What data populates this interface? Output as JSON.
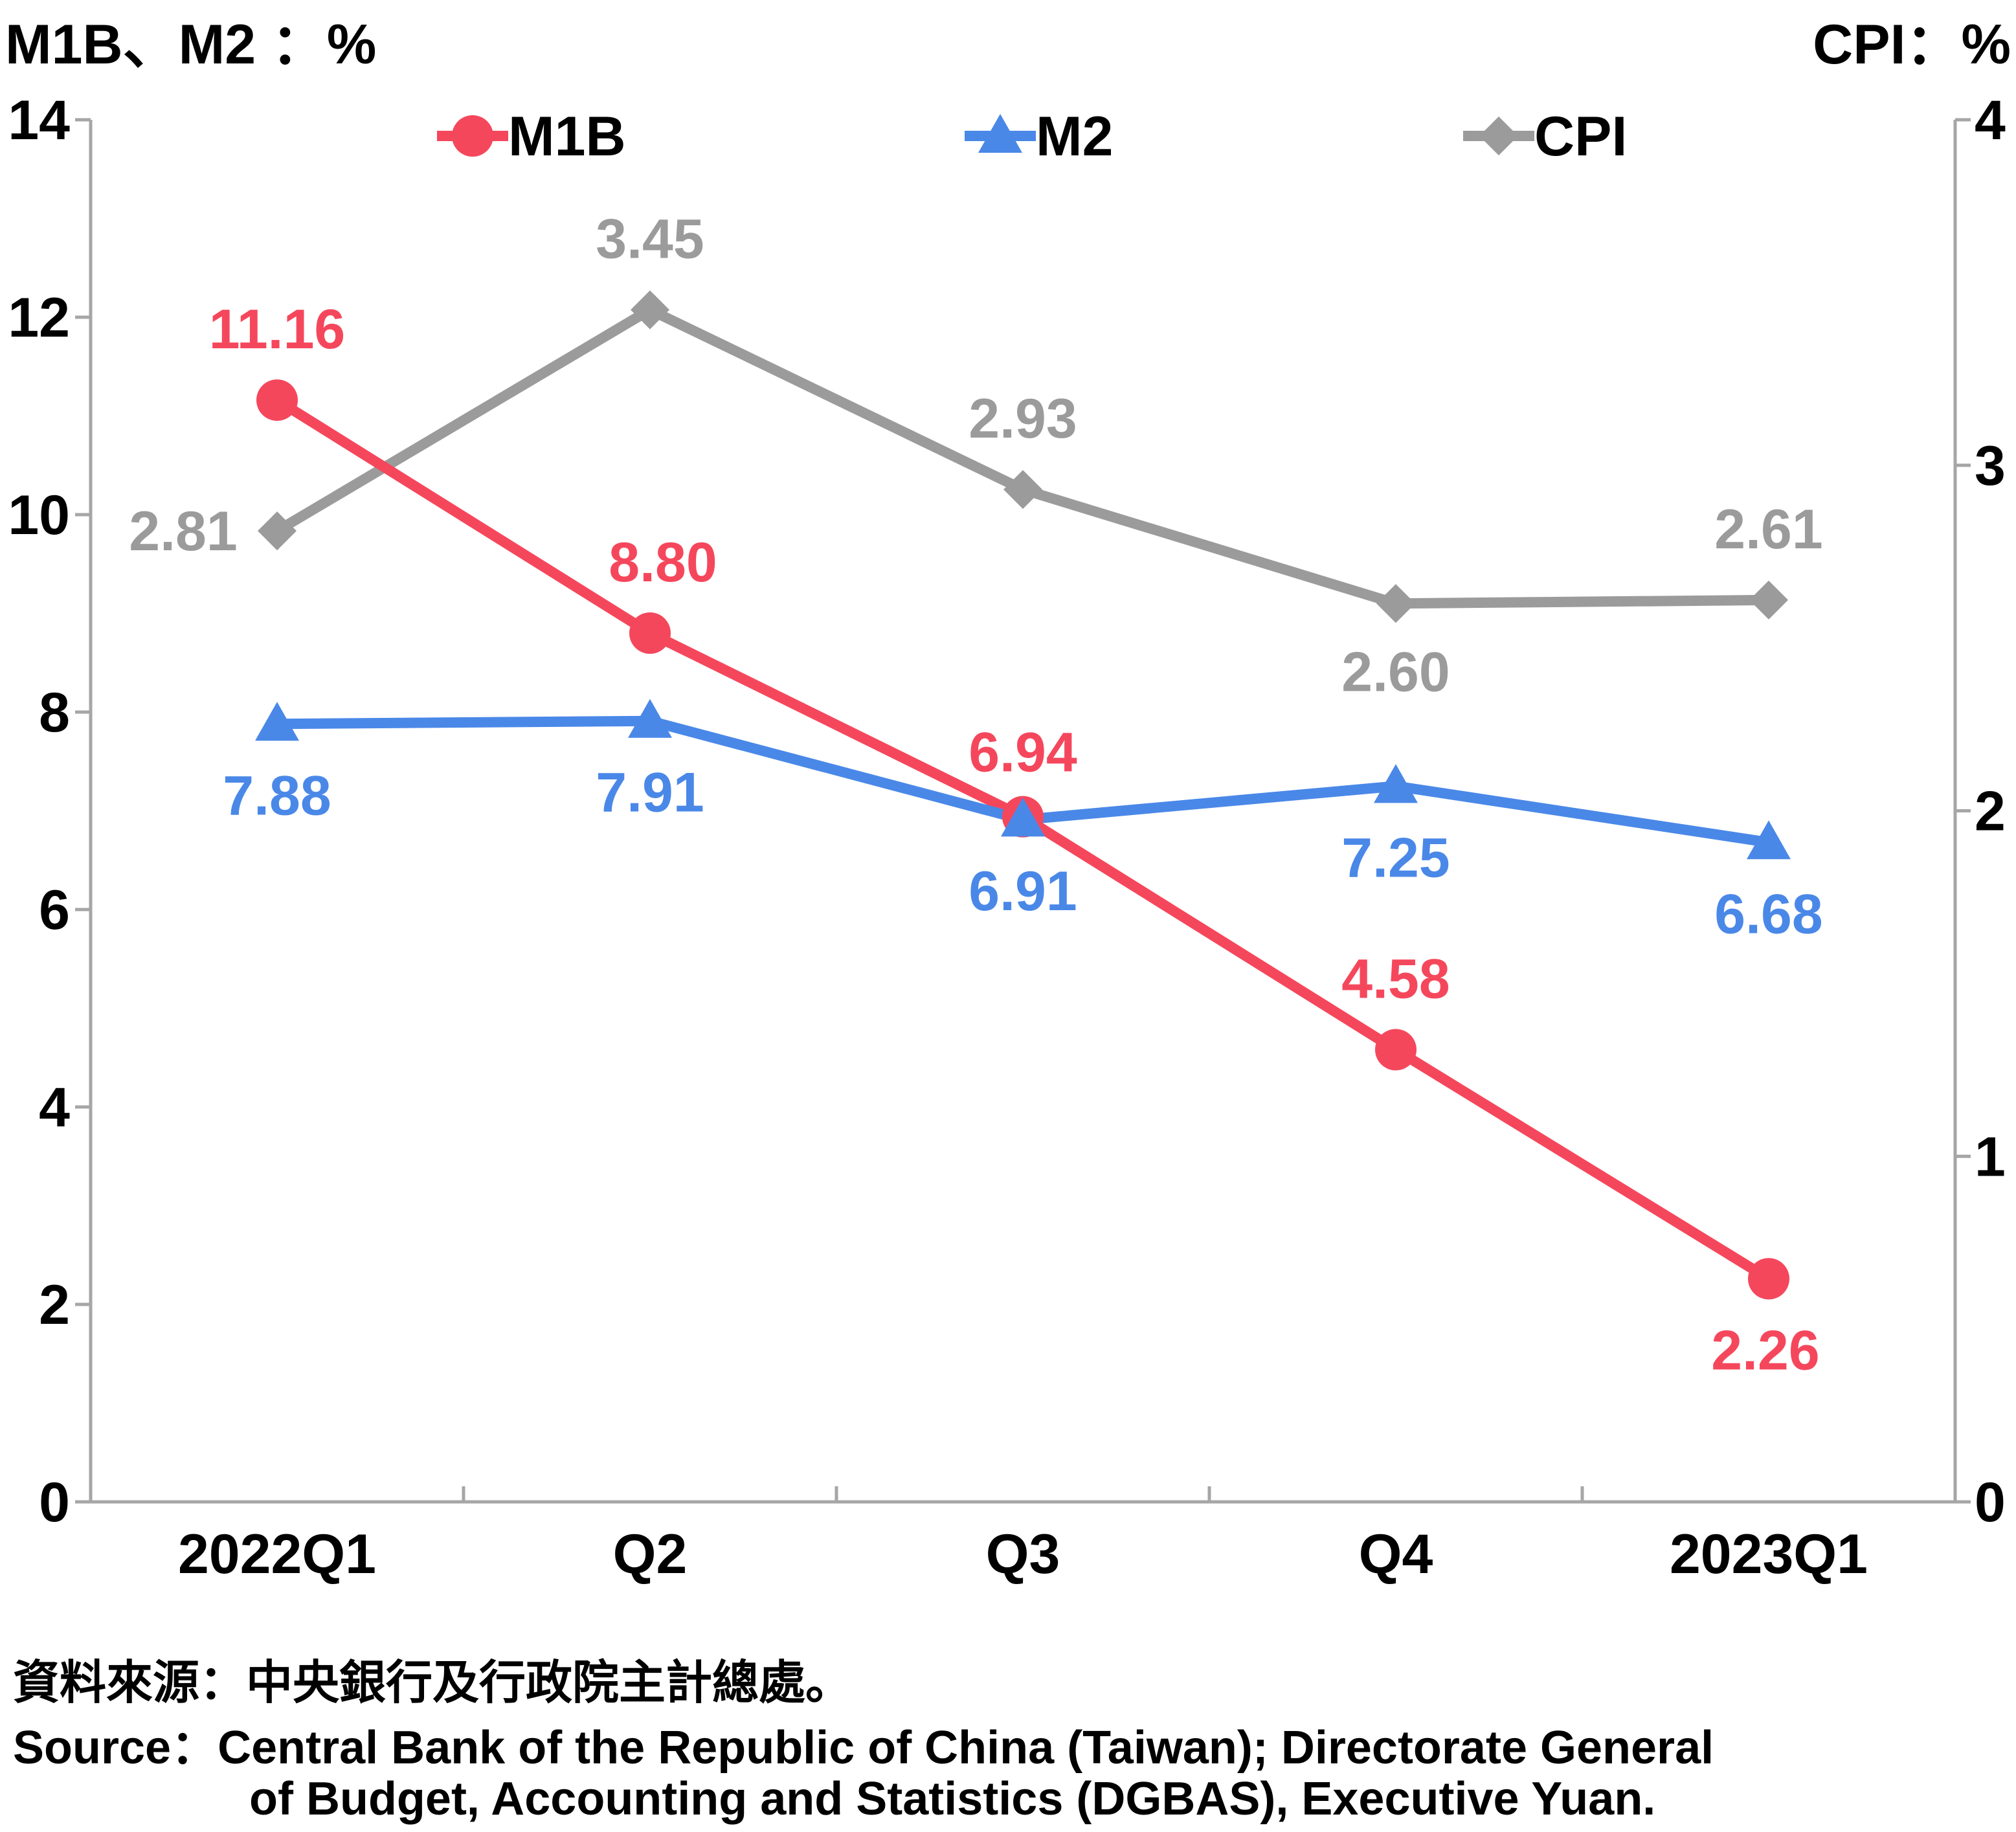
{
  "chart_data": {
    "type": "line",
    "left_axis_title": "M1B、M2 ：%",
    "right_axis_title": "CPI：%",
    "categories": [
      "2022Q1",
      "Q2",
      "Q3",
      "Q4",
      "2023Q1"
    ],
    "y_left": {
      "min": 0,
      "max": 14,
      "ticks": [
        "0",
        "2",
        "4",
        "6",
        "8",
        "10",
        "12",
        "14"
      ]
    },
    "y_right": {
      "min": 0,
      "max": 4,
      "ticks": [
        "0",
        "1",
        "2",
        "3",
        "4"
      ]
    },
    "series": [
      {
        "name": "M1B",
        "axis": "left",
        "color": "#f5475c",
        "marker": "circle",
        "values": [
          11.16,
          8.8,
          6.94,
          4.58,
          2.26
        ],
        "labels": [
          "11.16",
          "8.80",
          "6.94",
          "4.58",
          "2.26"
        ]
      },
      {
        "name": "M2",
        "axis": "left",
        "color": "#4a88e8",
        "marker": "triangle",
        "values": [
          7.88,
          7.91,
          6.91,
          7.25,
          6.68
        ],
        "labels": [
          "7.88",
          "7.91",
          "6.91",
          "7.25",
          "6.68"
        ]
      },
      {
        "name": "CPI",
        "axis": "right",
        "color": "#9b9b9b",
        "marker": "diamond",
        "values": [
          2.81,
          3.45,
          2.93,
          2.6,
          2.61
        ],
        "labels": [
          "2.81",
          "3.45",
          "2.93",
          "2.60",
          "2.61"
        ]
      }
    ],
    "legend_position": "top",
    "grid": false
  },
  "source": {
    "cn": "資料來源：中央銀行及行政院主計總處。",
    "en_line1": "Source：Central Bank of the Republic of China (Taiwan); Directorate General",
    "en_line2": "of Budget, Accounting and Statistics (DGBAS), Executive Yuan."
  }
}
